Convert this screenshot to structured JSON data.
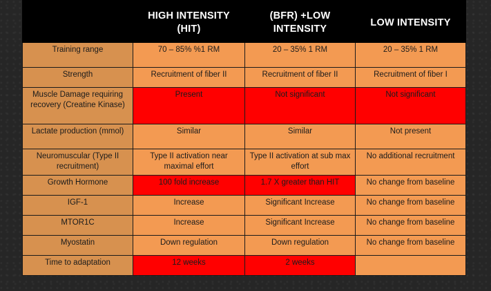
{
  "headers": [
    "",
    "HIGH INTENSITY (HIT)",
    "(BFR) +LOW INTENSITY",
    "LOW INTENSITY"
  ],
  "rows": [
    {
      "label": "Training range",
      "cells": [
        "70 – 85% %1 RM",
        "20 – 35% 1 RM",
        "20 – 35% 1 RM"
      ],
      "red": [
        false,
        false,
        false
      ]
    },
    {
      "label": "Strength",
      "cells": [
        "Recruitment of fiber II",
        "Recruitment of fiber II",
        "Recruitment of fiber I"
      ],
      "red": [
        false,
        false,
        false
      ]
    },
    {
      "label": "Muscle Damage requiring recovery (Creatine Kinase)",
      "cells": [
        "Present",
        "Not significant",
        "Not significant"
      ],
      "red": [
        true,
        true,
        true
      ]
    },
    {
      "label": "Lactate production (mmol)",
      "cells": [
        "Similar",
        "Similar",
        "Not present"
      ],
      "red": [
        false,
        false,
        false
      ]
    },
    {
      "label": "Neuromuscular (Type II recruitment)",
      "cells": [
        "Type II activation near maximal effort",
        "Type II activation at sub max effort",
        "No additional recruitment"
      ],
      "red": [
        false,
        false,
        false
      ]
    },
    {
      "label": "Growth Hormone",
      "cells": [
        "100 fold increase",
        "1.7 X greater than HIT",
        "No change from baseline"
      ],
      "red": [
        true,
        true,
        false
      ]
    },
    {
      "label": "IGF-1",
      "cells": [
        "Increase",
        "Significant Increase",
        "No change from baseline"
      ],
      "red": [
        false,
        false,
        false
      ]
    },
    {
      "label": "MTOR1C",
      "cells": [
        "Increase",
        "Significant Increase",
        "No change from baseline"
      ],
      "red": [
        false,
        false,
        false
      ]
    },
    {
      "label": "Myostatin",
      "cells": [
        "Down regulation",
        "Down regulation",
        "No change from baseline"
      ],
      "red": [
        false,
        false,
        false
      ]
    },
    {
      "label": "Time to adaptation",
      "cells": [
        "12 weeks",
        "2 weeks",
        ""
      ],
      "red": [
        true,
        true,
        false
      ]
    }
  ],
  "colors": {
    "header": "#000000",
    "label_cell": "#d7914f",
    "value_cell": "#f39a52",
    "highlight": "#ff0000",
    "background": "#262626"
  }
}
